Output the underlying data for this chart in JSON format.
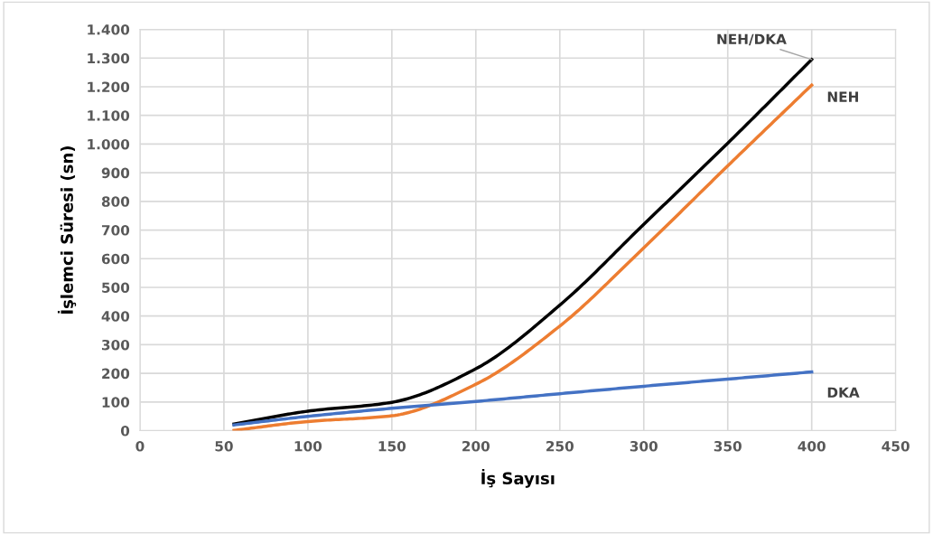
{
  "chart_data": {
    "type": "line",
    "xlabel": "İş Sayısı",
    "ylabel": "İşlemci Süresi (sn)",
    "xlim": [
      0,
      450
    ],
    "xticks": [
      0,
      50,
      100,
      150,
      200,
      250,
      300,
      350,
      400,
      450
    ],
    "ylim": [
      0,
      1400
    ],
    "yticks": [
      0,
      100,
      200,
      300,
      400,
      500,
      600,
      700,
      800,
      900,
      {
        "value": 1000,
        "label": "1.000"
      },
      {
        "value": 1100,
        "label": "1.100"
      },
      {
        "value": 1200,
        "label": "1.200"
      },
      {
        "value": 1300,
        "label": "1.300"
      },
      {
        "value": 1400,
        "label": "1.400"
      }
    ],
    "grid": true,
    "legend": false,
    "marker": "none",
    "line_style": "solid",
    "x": [
      56,
      100,
      150,
      200,
      250,
      300,
      350,
      400
    ],
    "series": [
      {
        "name": "NEH/DKA",
        "color": "#000000",
        "values": [
          23,
          68,
          99,
          216,
          438,
          720,
          1003,
          1295
        ]
      },
      {
        "name": "NEH",
        "color": "#ed7d31",
        "values": [
          1,
          32,
          52,
          162,
          365,
          638,
          924,
          1206
        ]
      },
      {
        "name": "DKA",
        "color": "#4472c4",
        "values": [
          20,
          50,
          78,
          102,
          129,
          155,
          180,
          205
        ]
      }
    ]
  }
}
